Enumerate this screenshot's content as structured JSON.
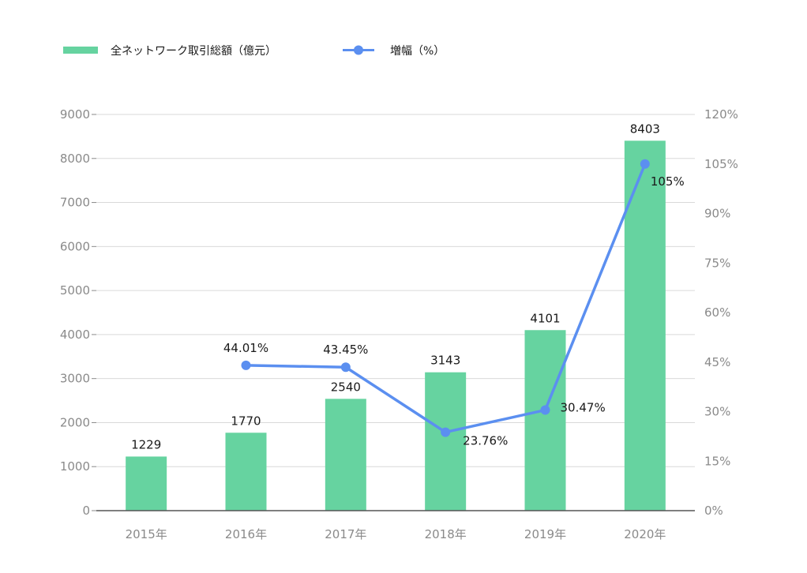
{
  "chart_data": {
    "type": "bar",
    "categories": [
      "2015年",
      "2016年",
      "2017年",
      "2018年",
      "2019年",
      "2020年"
    ],
    "series": [
      {
        "name": "全ネットワーク取引総額（億元）",
        "type": "bar",
        "axis": "left",
        "values": [
          1229,
          1770,
          2540,
          3143,
          4101,
          8403
        ],
        "labels": [
          "1229",
          "1770",
          "2540",
          "3143",
          "4101",
          "8403"
        ]
      },
      {
        "name": "増幅（%）",
        "type": "line",
        "axis": "right",
        "values": [
          null,
          44.01,
          43.45,
          23.76,
          30.47,
          105
        ],
        "labels": [
          "",
          "44.01%",
          "43.45%",
          "23.76%",
          "30.47%",
          "105%"
        ]
      }
    ],
    "y_left": {
      "ylim": [
        0,
        9000
      ],
      "ticks": [
        "0",
        "1000",
        "2000",
        "3000",
        "4000",
        "5000",
        "6000",
        "7000",
        "8000",
        "9000"
      ]
    },
    "y_right": {
      "ylim": [
        0,
        120
      ],
      "ticks": [
        "0%",
        "15%",
        "30%",
        "45%",
        "60%",
        "75%",
        "90%",
        "105%",
        "120%"
      ]
    },
    "grid": true,
    "legend_position": "top-left",
    "colors": {
      "bar": "#66d3a0",
      "line": "#5b8ff0",
      "grid": "#d9d9d9",
      "axis": "#555555",
      "tick_text": "#8a8a8a"
    }
  }
}
